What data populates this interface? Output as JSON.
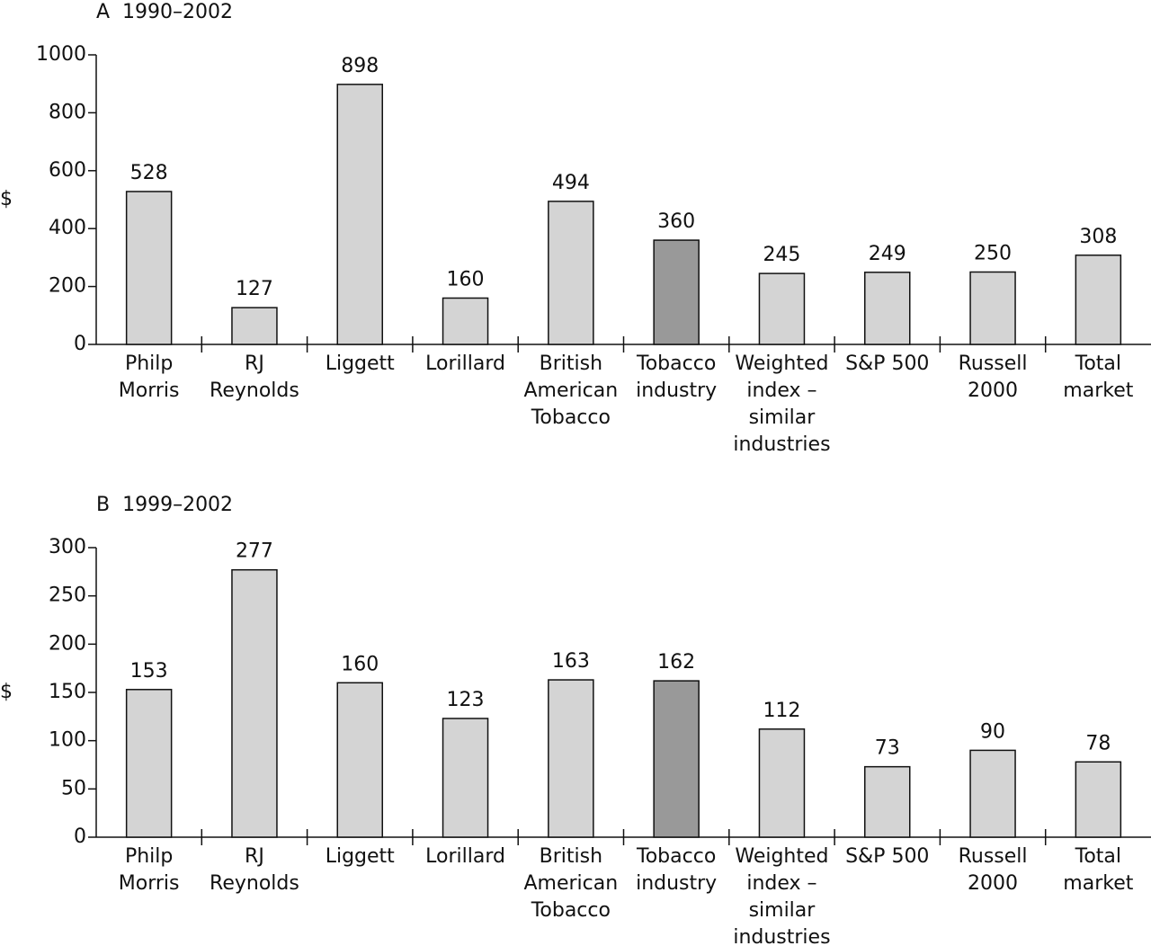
{
  "chart_data": [
    {
      "type": "bar",
      "title": "A  1990–2002",
      "y_label": "$",
      "categories": [
        [
          "Philp",
          "Morris"
        ],
        [
          "RJ",
          "Reynolds"
        ],
        [
          "Liggett"
        ],
        [
          "Lorillard"
        ],
        [
          "British",
          "American",
          "Tobacco"
        ],
        [
          "Tobacco",
          "industry"
        ],
        [
          "Weighted",
          "index –",
          "similar",
          "industries"
        ],
        [
          "S&P 500"
        ],
        [
          "Russell",
          "2000"
        ],
        [
          "Total",
          "market"
        ]
      ],
      "values": [
        528,
        127,
        898,
        160,
        494,
        360,
        245,
        249,
        250,
        308
      ],
      "colors": [
        "#d4d4d4",
        "#d4d4d4",
        "#d4d4d4",
        "#d4d4d4",
        "#d4d4d4",
        "#999999",
        "#d4d4d4",
        "#d4d4d4",
        "#d4d4d4",
        "#d4d4d4"
      ],
      "ylim": [
        0,
        1000
      ],
      "yticks": [
        0,
        200,
        400,
        600,
        800,
        1000
      ]
    },
    {
      "type": "bar",
      "title": "B  1999–2002",
      "y_label": "$",
      "categories": [
        [
          "Philp",
          "Morris"
        ],
        [
          "RJ",
          "Reynolds"
        ],
        [
          "Liggett"
        ],
        [
          "Lorillard"
        ],
        [
          "British",
          "American",
          "Tobacco"
        ],
        [
          "Tobacco",
          "industry"
        ],
        [
          "Weighted",
          "index –",
          "similar",
          "industries"
        ],
        [
          "S&P 500"
        ],
        [
          "Russell",
          "2000"
        ],
        [
          "Total",
          "market"
        ]
      ],
      "values": [
        153,
        277,
        160,
        123,
        163,
        162,
        112,
        73,
        90,
        78
      ],
      "colors": [
        "#d4d4d4",
        "#d4d4d4",
        "#d4d4d4",
        "#d4d4d4",
        "#d4d4d4",
        "#999999",
        "#d4d4d4",
        "#d4d4d4",
        "#d4d4d4",
        "#d4d4d4"
      ],
      "ylim": [
        0,
        300
      ],
      "yticks": [
        0,
        50,
        100,
        150,
        200,
        250,
        300
      ]
    }
  ]
}
